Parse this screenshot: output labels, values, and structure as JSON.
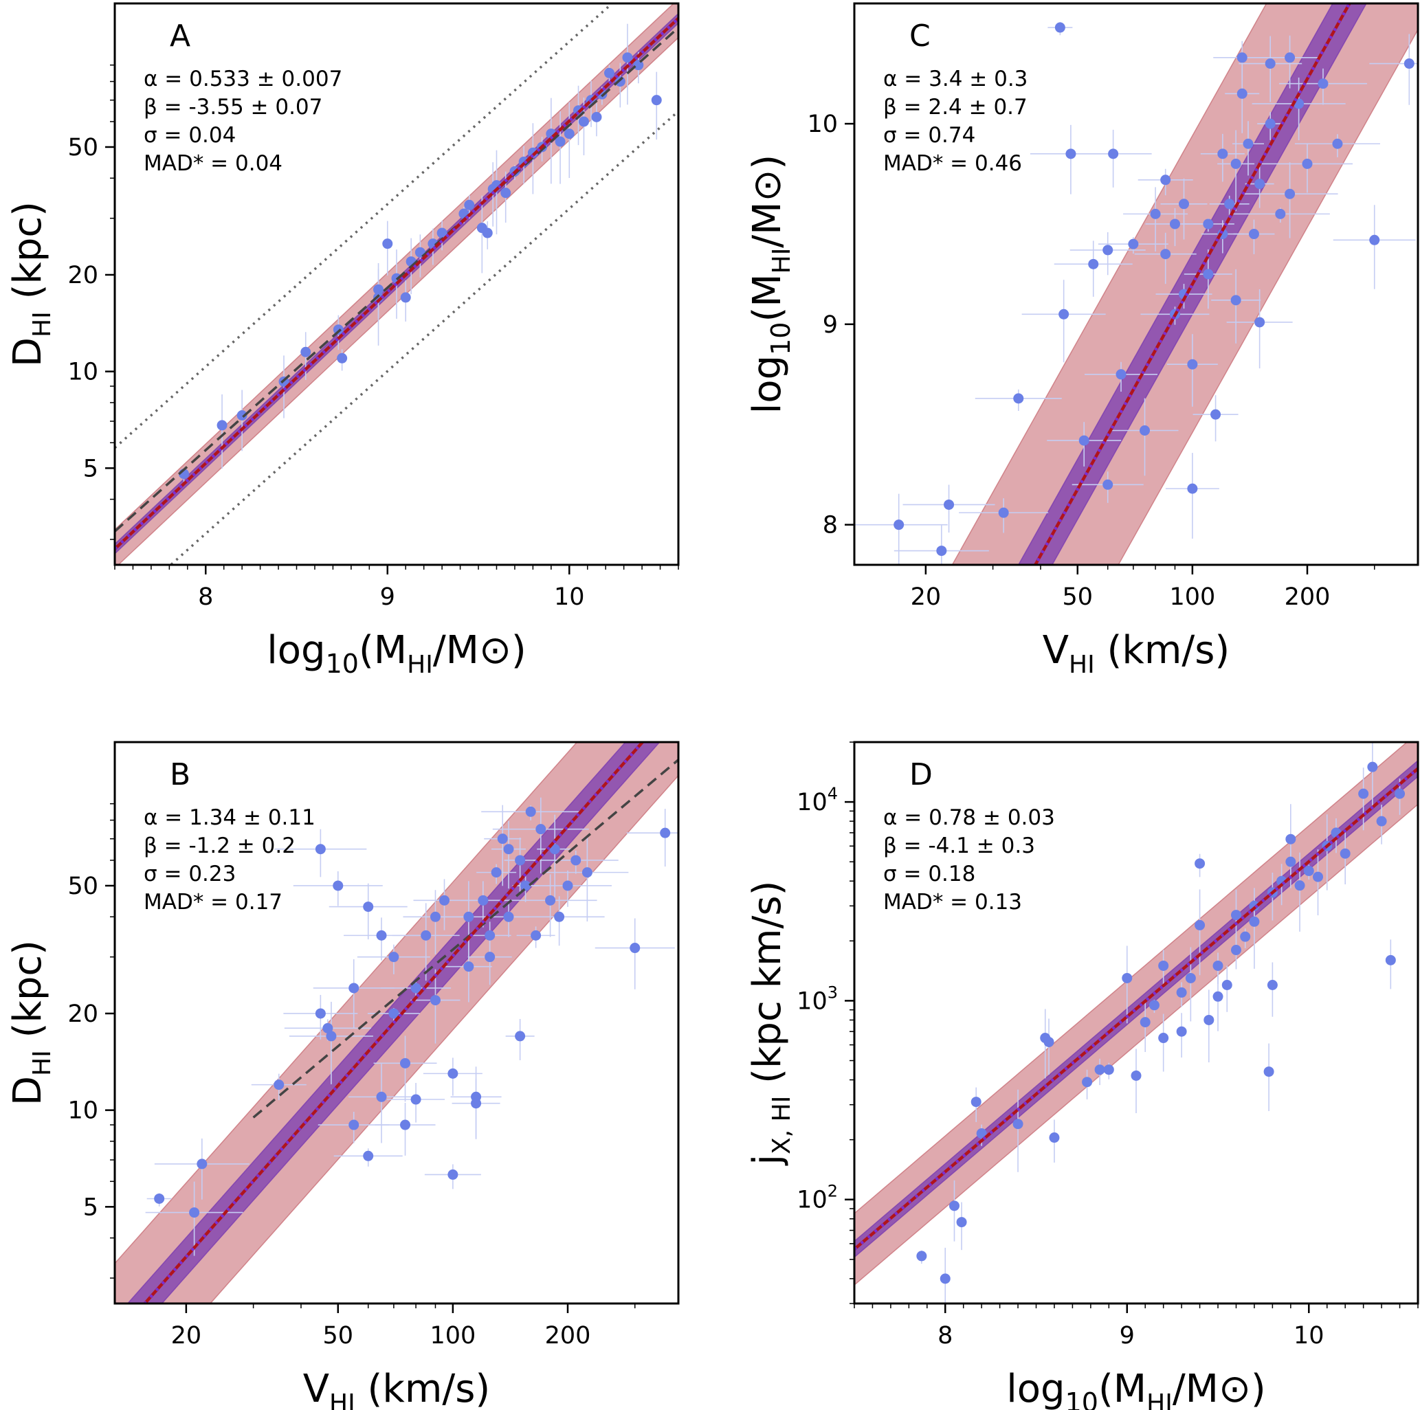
{
  "colors": {
    "points": "#6a7fe6",
    "errorbars": "#c5cdf3",
    "fit_line": "#b0141c",
    "scatter_band": "#c97078",
    "fit_uncertainty": "#7a3cb0",
    "dotted_median": "#7a2fd6",
    "dashed_reference": "#444444",
    "dotted_bounds": "#666666"
  },
  "chart_data": [
    {
      "panel": "A",
      "type": "scatter",
      "xscale": "linear",
      "yscale": "log",
      "xlim": [
        7.5,
        10.6
      ],
      "ylim": [
        2.5,
        140
      ],
      "xticks": [
        8,
        9,
        10
      ],
      "xtick_labels": [
        "8",
        "9",
        "10"
      ],
      "yticks": [
        5,
        10,
        20,
        50
      ],
      "ytick_labels": [
        "5",
        "10",
        "20",
        "50"
      ],
      "xlabel": {
        "base": "log",
        "sub1": "10",
        "mid": "(M",
        "sub2": "HI",
        "end": "/M⊙)"
      },
      "ylabel": {
        "base": "D",
        "sub": "HI",
        "end": " (kpc)"
      },
      "stats": [
        "α = 0.533 ± 0.007",
        "β = -3.55 ± 0.07",
        "σ = 0.04",
        "MAD* = 0.04"
      ],
      "fit": {
        "slope": 0.533,
        "intercept": -3.55,
        "scatter_dex": 0.04,
        "band_dex": 0.06,
        "unc_dex": 0.015
      },
      "reference_line": {
        "style": "dashed",
        "slope": 0.506,
        "intercept": -3.293
      },
      "bound_lines": {
        "style": "dotted",
        "slope": 0.506,
        "intercept": -3.293,
        "offsets_dex": [
          0.26,
          -0.26
        ]
      },
      "points_xy": [
        [
          7.88,
          4.8
        ],
        [
          8.09,
          6.8
        ],
        [
          8.2,
          7.3
        ],
        [
          8.55,
          11.5
        ],
        [
          8.73,
          13.5
        ],
        [
          8.75,
          11
        ],
        [
          8.95,
          17
        ],
        [
          9.05,
          19.5
        ],
        [
          9.13,
          22
        ],
        [
          9.18,
          23.5
        ],
        [
          9.3,
          27
        ],
        [
          9.42,
          31
        ],
        [
          9.52,
          28
        ],
        [
          9.58,
          37
        ],
        [
          9.65,
          36
        ],
        [
          9.75,
          45
        ],
        [
          9.85,
          50
        ],
        [
          9.9,
          55
        ],
        [
          9.95,
          52
        ],
        [
          10.05,
          65
        ],
        [
          10.12,
          70
        ],
        [
          10.15,
          62
        ],
        [
          10.22,
          85
        ],
        [
          10.32,
          95
        ],
        [
          10.48,
          70
        ],
        [
          9.0,
          25
        ],
        [
          9.1,
          17
        ],
        [
          9.55,
          27
        ],
        [
          9.7,
          42
        ],
        [
          10.0,
          55
        ],
        [
          8.43,
          9.3
        ],
        [
          8.95,
          18
        ],
        [
          9.25,
          25
        ],
        [
          9.45,
          33
        ],
        [
          9.6,
          38
        ],
        [
          9.8,
          48
        ],
        [
          10.08,
          60
        ],
        [
          10.28,
          80
        ],
        [
          10.38,
          90
        ],
        [
          10.18,
          73
        ]
      ]
    },
    {
      "panel": "B",
      "type": "scatter",
      "xscale": "log",
      "yscale": "log",
      "xlim": [
        13,
        390
      ],
      "ylim": [
        2.5,
        140
      ],
      "xticks": [
        20,
        50,
        100,
        200
      ],
      "xtick_labels": [
        "20",
        "50",
        "100",
        "200"
      ],
      "yticks": [
        5,
        10,
        20,
        50
      ],
      "ytick_labels": [
        "5",
        "10",
        "20",
        "50"
      ],
      "xlabel": {
        "base": "V",
        "sub": "HI",
        "end": " (km/s)"
      },
      "ylabel": {
        "base": "D",
        "sub": "HI",
        "end": " (kpc)"
      },
      "stats": [
        "α = 1.34 ± 0.11",
        "β = -1.2 ± 0.2",
        "σ = 0.23",
        "MAD* = 0.17"
      ],
      "fit": {
        "slope": 1.34,
        "intercept": -1.2,
        "scatter_dex": 0.23,
        "band_dex": 0.23,
        "unc_dex": 0.06
      },
      "reference_line": {
        "style": "dashed",
        "slope": 1.0,
        "intercept": -0.5,
        "x_from": 30
      },
      "points_xy": [
        [
          17,
          5.3
        ],
        [
          21,
          4.8
        ],
        [
          22,
          6.8
        ],
        [
          45,
          65
        ],
        [
          50,
          50
        ],
        [
          47,
          18
        ],
        [
          48,
          17
        ],
        [
          55,
          24
        ],
        [
          60,
          43
        ],
        [
          65,
          35
        ],
        [
          70,
          30
        ],
        [
          80,
          24
        ],
        [
          85,
          35
        ],
        [
          90,
          40
        ],
        [
          95,
          45
        ],
        [
          100,
          13
        ],
        [
          100,
          6.3
        ],
        [
          110,
          40
        ],
        [
          115,
          11
        ],
        [
          115,
          10.5
        ],
        [
          120,
          45
        ],
        [
          125,
          35
        ],
        [
          130,
          55
        ],
        [
          135,
          70
        ],
        [
          140,
          65
        ],
        [
          150,
          60
        ],
        [
          150,
          17
        ],
        [
          155,
          50
        ],
        [
          160,
          85
        ],
        [
          170,
          75
        ],
        [
          180,
          45
        ],
        [
          190,
          40
        ],
        [
          200,
          50
        ],
        [
          210,
          60
        ],
        [
          225,
          55
        ],
        [
          300,
          32
        ],
        [
          360,
          73
        ],
        [
          45,
          20
        ],
        [
          55,
          9
        ],
        [
          60,
          7.2
        ],
        [
          65,
          11
        ],
        [
          75,
          14
        ],
        [
          75,
          9
        ],
        [
          80,
          10.8
        ],
        [
          35,
          12
        ],
        [
          70,
          20
        ],
        [
          90,
          22
        ],
        [
          110,
          28
        ],
        [
          125,
          30
        ],
        [
          140,
          40
        ],
        [
          165,
          35
        ],
        [
          185,
          65
        ]
      ]
    },
    {
      "panel": "C",
      "type": "scatter",
      "xscale": "log",
      "yscale": "linear",
      "xlim": [
        13,
        390
      ],
      "ylim": [
        7.8,
        10.6
      ],
      "xticks": [
        20,
        50,
        100,
        200
      ],
      "xtick_labels": [
        "20",
        "50",
        "100",
        "200"
      ],
      "yticks": [
        8,
        9,
        10
      ],
      "ytick_labels": [
        "8",
        "9",
        "10"
      ],
      "xlabel": {
        "base": "V",
        "sub": "HI",
        "end": " (km/s)"
      },
      "ylabel": {
        "base": "log",
        "sub1": "10",
        "mid": "(M",
        "sub2": "HI",
        "end": "/M⊙)"
      },
      "stats": [
        "α = 3.4 ± 0.3",
        "β = 2.4 ± 0.7",
        "σ = 0.74",
        "MAD* = 0.46"
      ],
      "fit": {
        "slope": 3.4,
        "intercept": 2.4,
        "scatter_dex": 0.74,
        "band_dex": 0.74,
        "unc_dex": 0.15
      },
      "points_xy": [
        [
          45,
          10.48
        ],
        [
          17,
          8.0
        ],
        [
          22,
          7.87
        ],
        [
          23,
          8.1
        ],
        [
          32,
          8.06
        ],
        [
          35,
          8.63
        ],
        [
          46,
          9.05
        ],
        [
          48,
          9.85
        ],
        [
          55,
          9.3
        ],
        [
          60,
          9.37
        ],
        [
          65,
          8.75
        ],
        [
          70,
          9.4
        ],
        [
          75,
          8.47
        ],
        [
          80,
          9.55
        ],
        [
          85,
          9.35
        ],
        [
          90,
          9.5
        ],
        [
          95,
          9.15
        ],
        [
          100,
          8.18
        ],
        [
          100,
          8.8
        ],
        [
          110,
          9.25
        ],
        [
          115,
          8.55
        ],
        [
          120,
          9.45
        ],
        [
          125,
          9.6
        ],
        [
          130,
          9.8
        ],
        [
          135,
          10.15
        ],
        [
          140,
          9.9
        ],
        [
          150,
          9.7
        ],
        [
          160,
          10.0
        ],
        [
          170,
          9.55
        ],
        [
          180,
          9.65
        ],
        [
          190,
          10.1
        ],
        [
          200,
          9.8
        ],
        [
          220,
          10.2
        ],
        [
          240,
          9.9
        ],
        [
          300,
          9.42
        ],
        [
          370,
          10.3
        ],
        [
          62,
          9.85
        ],
        [
          52,
          8.42
        ],
        [
          60,
          8.2
        ],
        [
          90,
          9.05
        ],
        [
          150,
          9.01
        ],
        [
          160,
          10.3
        ],
        [
          180,
          10.33
        ],
        [
          135,
          10.33
        ],
        [
          85,
          9.72
        ],
        [
          110,
          9.5
        ],
        [
          130,
          9.12
        ],
        [
          95,
          9.6
        ],
        [
          120,
          9.85
        ],
        [
          145,
          9.45
        ]
      ]
    },
    {
      "panel": "D",
      "type": "scatter",
      "xscale": "linear",
      "yscale": "log",
      "xlim": [
        7.5,
        10.6
      ],
      "ylim": [
        30,
        20000
      ],
      "xticks": [
        8,
        9,
        10
      ],
      "xtick_labels": [
        "8",
        "9",
        "10"
      ],
      "yticks": [
        100,
        1000,
        10000
      ],
      "ytick_labels": [
        "10",
        "10",
        "10"
      ],
      "ytick_exponents": [
        "2",
        "3",
        "4"
      ],
      "xlabel": {
        "base": "log",
        "sub1": "10",
        "mid": "(M",
        "sub2": "HI",
        "end": "/M⊙)"
      },
      "ylabel": {
        "base": "j",
        "sub": "X, HI",
        "end": " (kpc km/s)"
      },
      "stats": [
        "α = 0.78 ± 0.03",
        "β = -4.1 ± 0.3",
        "σ = 0.18",
        "MAD* = 0.13"
      ],
      "fit": {
        "slope": 0.78,
        "intercept": -4.1,
        "scatter_dex": 0.18,
        "band_dex": 0.18,
        "unc_dex": 0.04
      },
      "points_xy": [
        [
          7.87,
          52
        ],
        [
          8.0,
          40
        ],
        [
          8.05,
          93
        ],
        [
          8.09,
          77
        ],
        [
          8.17,
          310
        ],
        [
          8.2,
          215
        ],
        [
          8.4,
          240
        ],
        [
          8.55,
          650
        ],
        [
          8.57,
          620
        ],
        [
          8.6,
          205
        ],
        [
          8.78,
          390
        ],
        [
          8.9,
          450
        ],
        [
          9.0,
          1300
        ],
        [
          9.05,
          420
        ],
        [
          9.1,
          780
        ],
        [
          9.2,
          1500
        ],
        [
          9.3,
          1100
        ],
        [
          9.4,
          2400
        ],
        [
          9.45,
          800
        ],
        [
          9.5,
          1050
        ],
        [
          9.55,
          1200
        ],
        [
          9.6,
          1800
        ],
        [
          9.65,
          2100
        ],
        [
          9.7,
          2500
        ],
        [
          9.78,
          440
        ],
        [
          9.8,
          1200
        ],
        [
          9.85,
          4000
        ],
        [
          9.9,
          5000
        ],
        [
          10.0,
          4500
        ],
        [
          10.1,
          6000
        ],
        [
          10.3,
          11000
        ],
        [
          10.45,
          1600
        ],
        [
          10.5,
          11000
        ],
        [
          9.4,
          4900
        ],
        [
          9.9,
          6500
        ],
        [
          10.35,
          15000
        ],
        [
          9.2,
          650
        ],
        [
          9.3,
          700
        ],
        [
          9.5,
          1500
        ],
        [
          9.7,
          3000
        ],
        [
          9.95,
          3800
        ],
        [
          10.05,
          4200
        ],
        [
          10.2,
          5500
        ],
        [
          10.4,
          8000
        ],
        [
          8.85,
          450
        ],
        [
          9.15,
          950
        ],
        [
          9.35,
          1300
        ],
        [
          9.6,
          2700
        ],
        [
          9.8,
          3500
        ],
        [
          10.15,
          7000
        ]
      ]
    }
  ]
}
